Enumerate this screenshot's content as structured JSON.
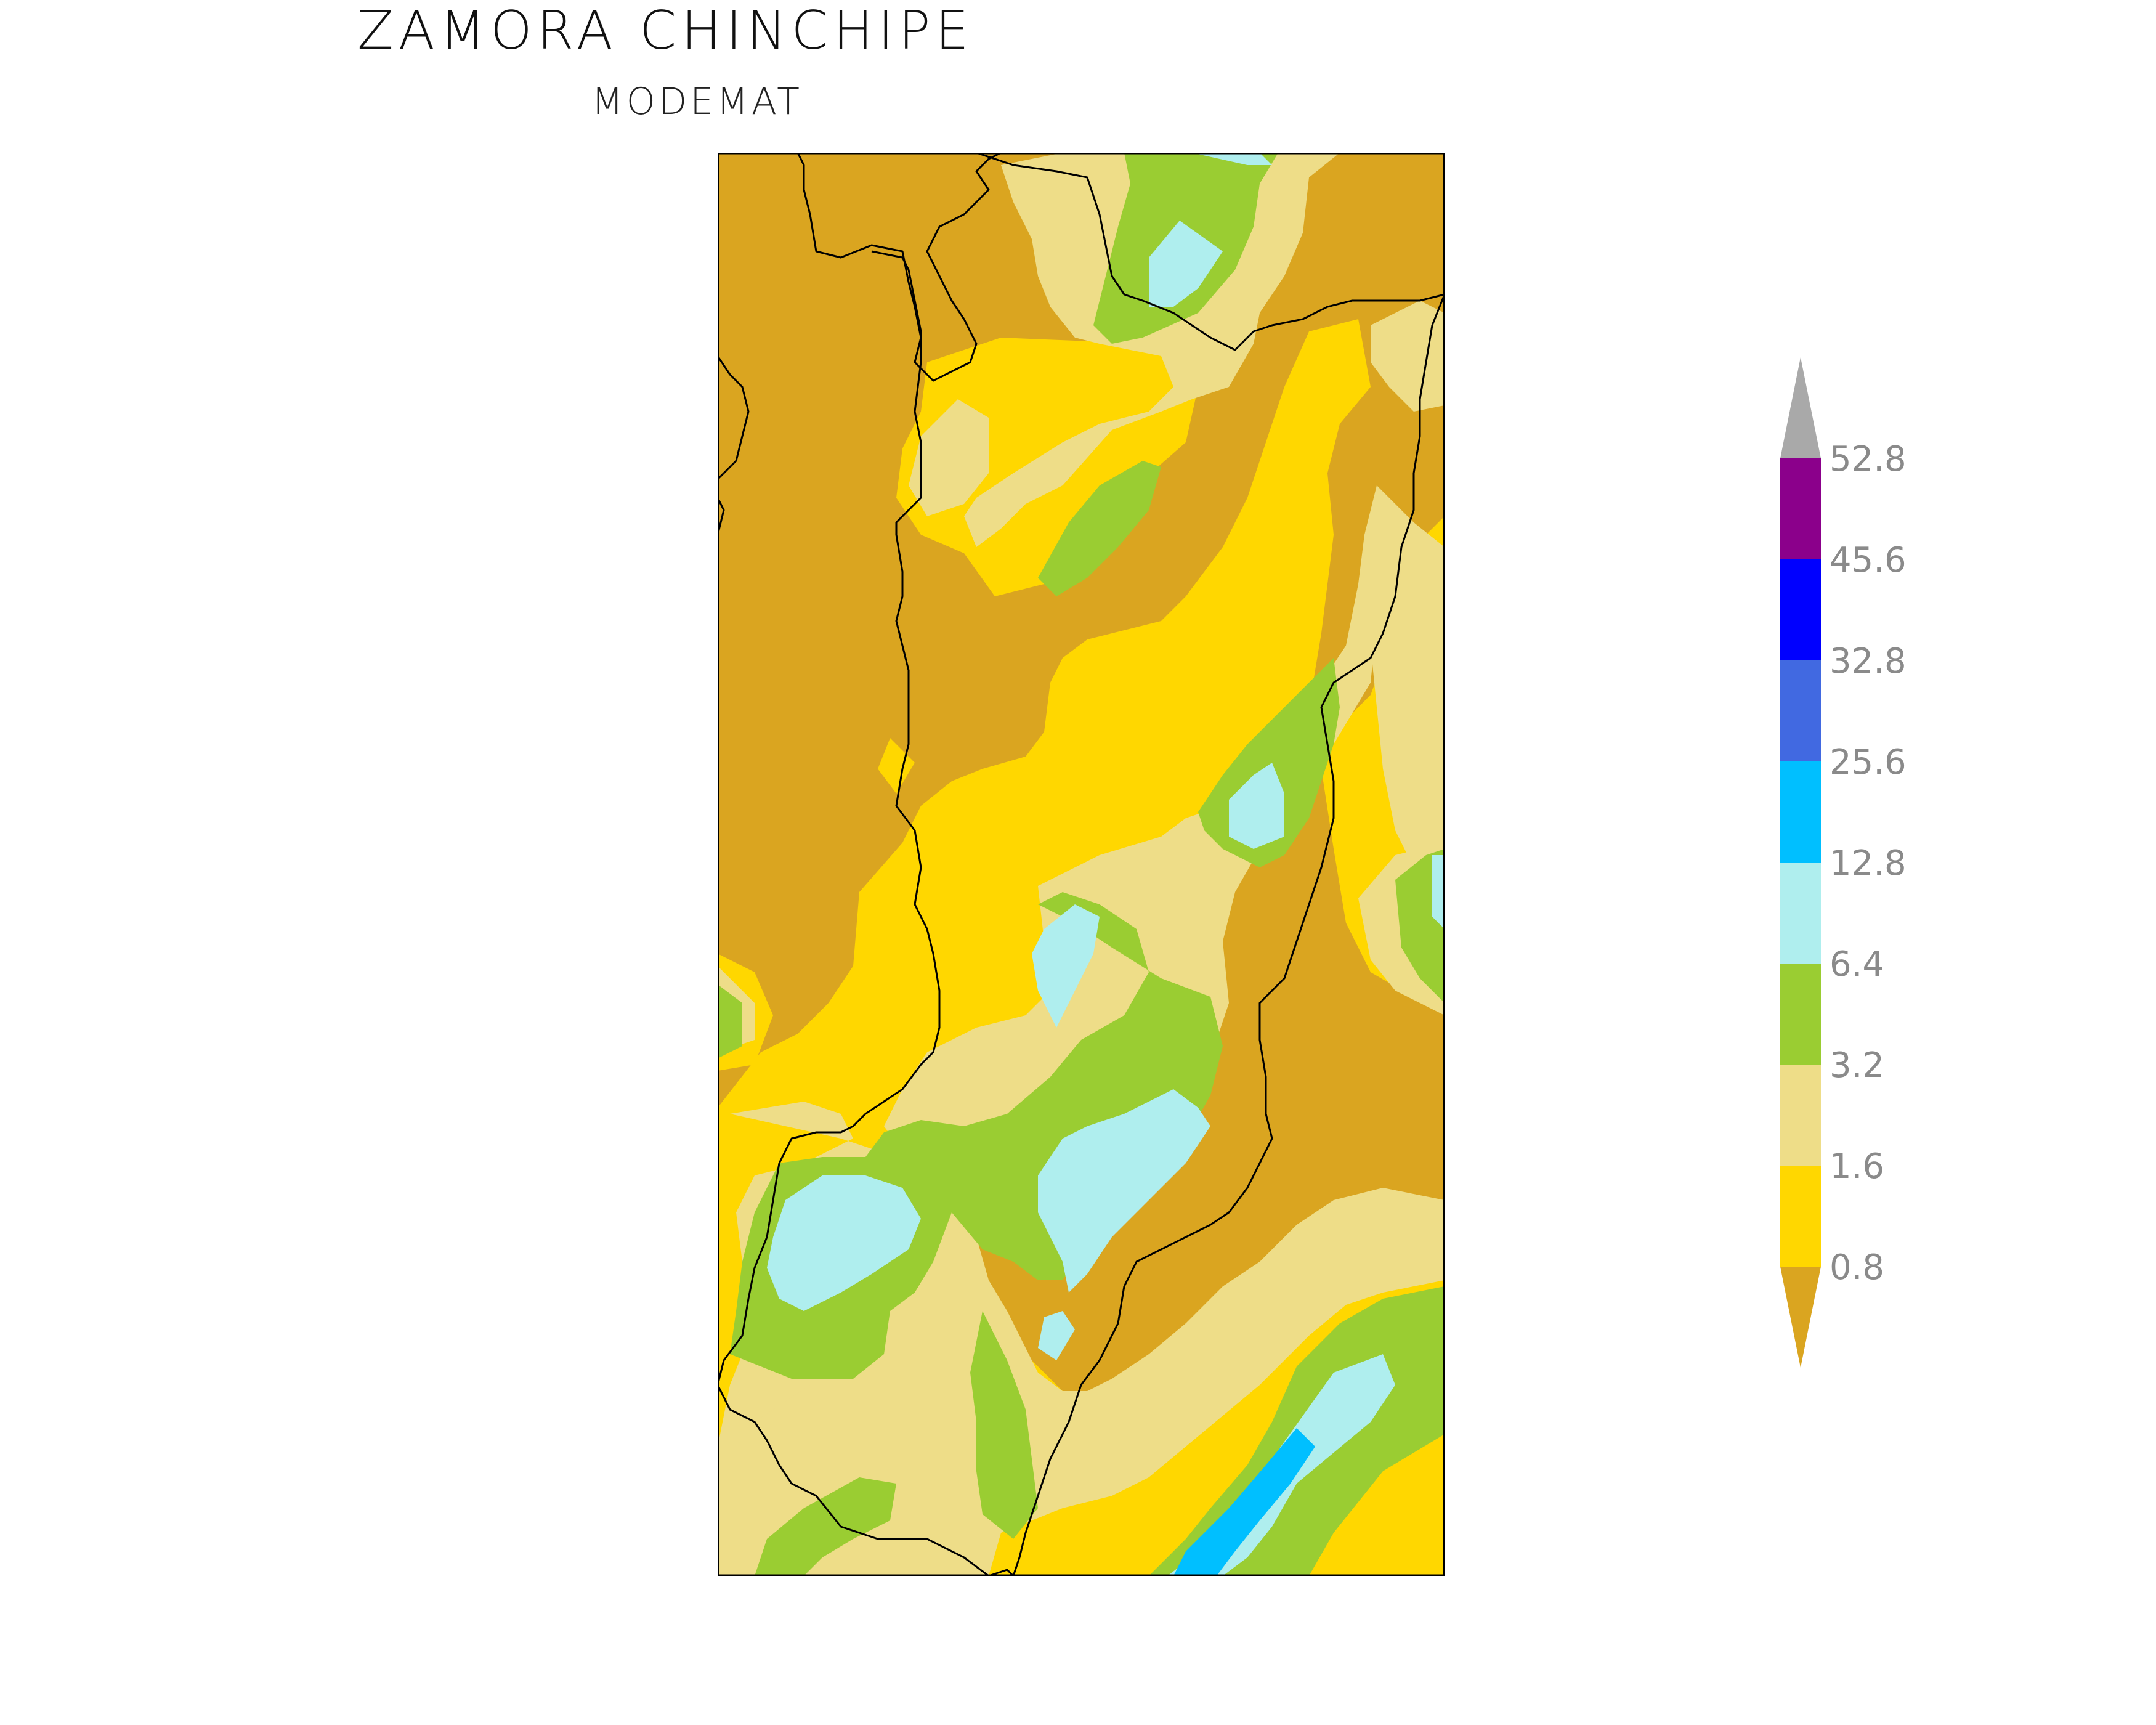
{
  "title": "ZAMORA  CHINCHIPE",
  "subtitle": "MODEMAT",
  "legend": {
    "levels": [
      "0.8",
      "1.6",
      "3.2",
      "6.4",
      "12.8",
      "25.6",
      "32.8",
      "45.6",
      "52.8"
    ],
    "colors": [
      "#DAA520",
      "#FFD700",
      "#EEDD88",
      "#9ACD32",
      "#AFEEEE",
      "#00BFFF",
      "#4169E1",
      "#0000FF",
      "#8B008B",
      "#A9A9A9"
    ]
  },
  "map": {
    "background": "#DAA520",
    "border_color": "#000000"
  }
}
